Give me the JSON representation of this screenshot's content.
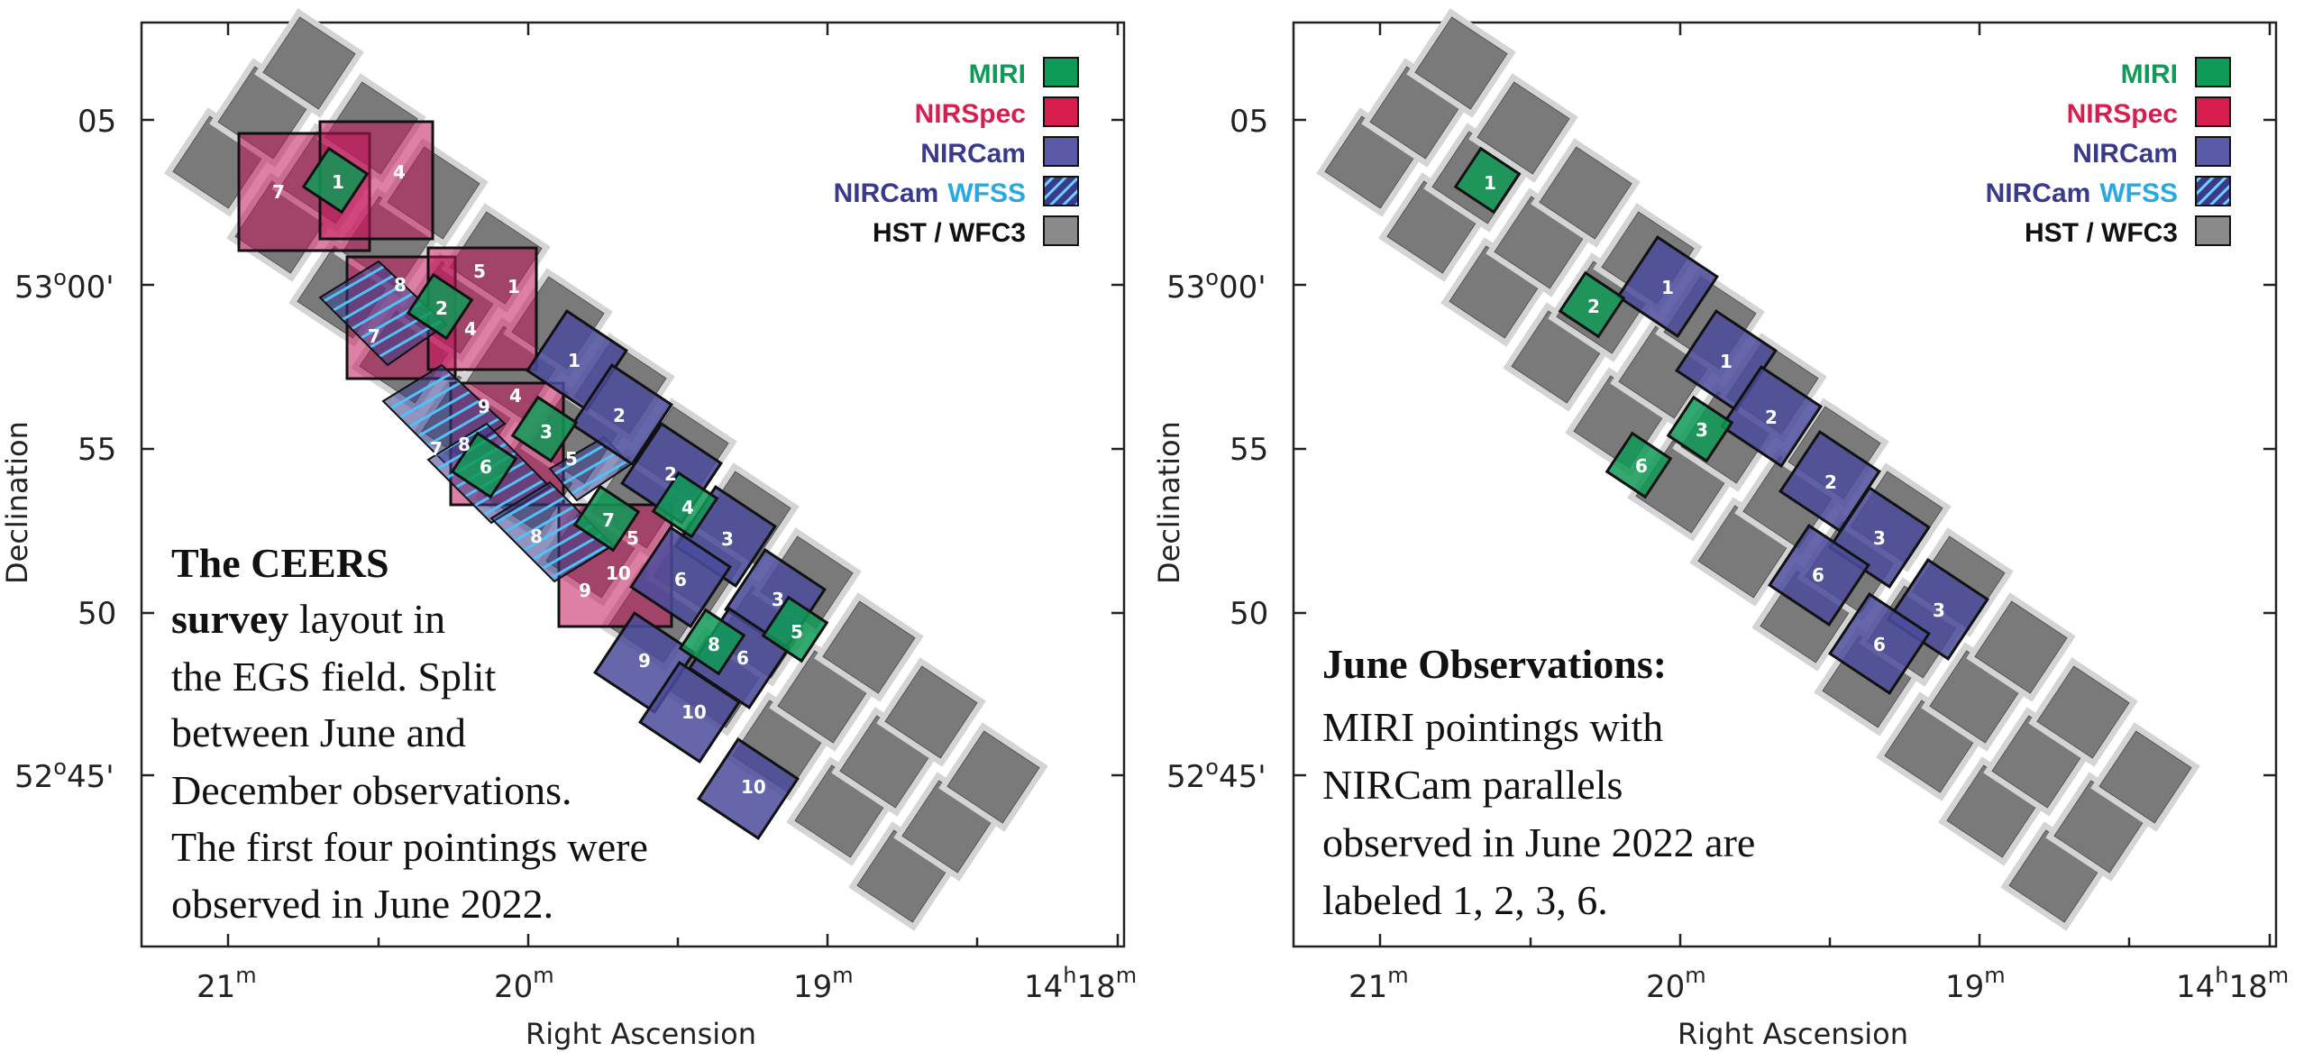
{
  "colors": {
    "miri": "#0f9a57",
    "nirspec": "#d81e4f",
    "nircam": "#3a3a8c",
    "wfss": "#2aa9e0",
    "hst": "#7a7a7a",
    "text_dark": "#111111"
  },
  "panels": [
    {
      "id": "left",
      "xlabel": "Right Ascension",
      "ylabel": "Declination",
      "xticks": [
        {
          "main": "21",
          "sup": "m"
        },
        {
          "main": "20",
          "sup": "m"
        },
        {
          "main": "19",
          "sup": "m"
        },
        {
          "main": "14",
          "sup": "h",
          "main2": "18",
          "sup2": "m"
        }
      ],
      "yticks": [
        {
          "main": "05"
        },
        {
          "main": "53",
          "sup": "o",
          "main2": "00'"
        },
        {
          "main": "55"
        },
        {
          "main": "50"
        },
        {
          "main": "52",
          "sup": "o",
          "main2": "45'"
        }
      ],
      "legend": [
        {
          "label": "MIRI",
          "key": "miri"
        },
        {
          "label": "NIRSpec",
          "key": "nirspec"
        },
        {
          "label": "NIRCam",
          "key": "nircam"
        },
        {
          "label": "NIRCam",
          "label2": "WFSS",
          "key": "wfss"
        },
        {
          "label": "HST / WFC3",
          "key": "hst"
        }
      ],
      "caption": [
        {
          "bold": "The CEERS",
          "rest": ""
        },
        {
          "bold": "survey",
          "rest": " layout in"
        },
        {
          "bold": "",
          "rest": "the EGS field. Split"
        },
        {
          "bold": "",
          "rest": "between June and"
        },
        {
          "bold": "",
          "rest": "December observations."
        },
        {
          "bold": "",
          "rest": "The first four pointings were"
        },
        {
          "bold": "",
          "rest": "observed in June 2022."
        }
      ],
      "nirspec": [
        "7",
        "4",
        "5",
        "1",
        "8",
        "7",
        "4",
        "4",
        "9",
        "8",
        "5",
        "10",
        "9"
      ],
      "nircam": [
        "1",
        "2",
        "2",
        "3",
        "6",
        "3",
        "9",
        "10",
        "10",
        "6",
        "7",
        "5",
        "8"
      ],
      "miri": [
        "1",
        "2",
        "3",
        "6",
        "7",
        "4",
        "8",
        "5"
      ]
    },
    {
      "id": "right",
      "xlabel": "Right Ascension",
      "ylabel": "Declination",
      "xticks": [
        {
          "main": "21",
          "sup": "m"
        },
        {
          "main": "20",
          "sup": "m"
        },
        {
          "main": "19",
          "sup": "m"
        },
        {
          "main": "14",
          "sup": "h",
          "main2": "18",
          "sup2": "m"
        }
      ],
      "yticks": [
        {
          "main": "05"
        },
        {
          "main": "53",
          "sup": "o",
          "main2": "00'"
        },
        {
          "main": "55"
        },
        {
          "main": "50"
        },
        {
          "main": "52",
          "sup": "o",
          "main2": "45'"
        }
      ],
      "legend": [
        {
          "label": "MIRI",
          "key": "miri"
        },
        {
          "label": "NIRSpec",
          "key": "nirspec"
        },
        {
          "label": "NIRCam",
          "key": "nircam"
        },
        {
          "label": "NIRCam",
          "label2": "WFSS",
          "key": "wfss"
        },
        {
          "label": "HST / WFC3",
          "key": "hst"
        }
      ],
      "caption": [
        {
          "bold": "June Observations:",
          "rest": ""
        },
        {
          "bold": "",
          "rest": "MIRI pointings with"
        },
        {
          "bold": "",
          "rest": "NIRCam parallels"
        },
        {
          "bold": "",
          "rest": "observed in June 2022 are"
        },
        {
          "bold": "",
          "rest": "labeled 1, 2, 3, 6."
        }
      ],
      "nircam": [
        "1",
        "1",
        "2",
        "2",
        "3",
        "6",
        "3",
        "6"
      ],
      "miri": [
        "1",
        "2",
        "3",
        "6"
      ]
    }
  ]
}
